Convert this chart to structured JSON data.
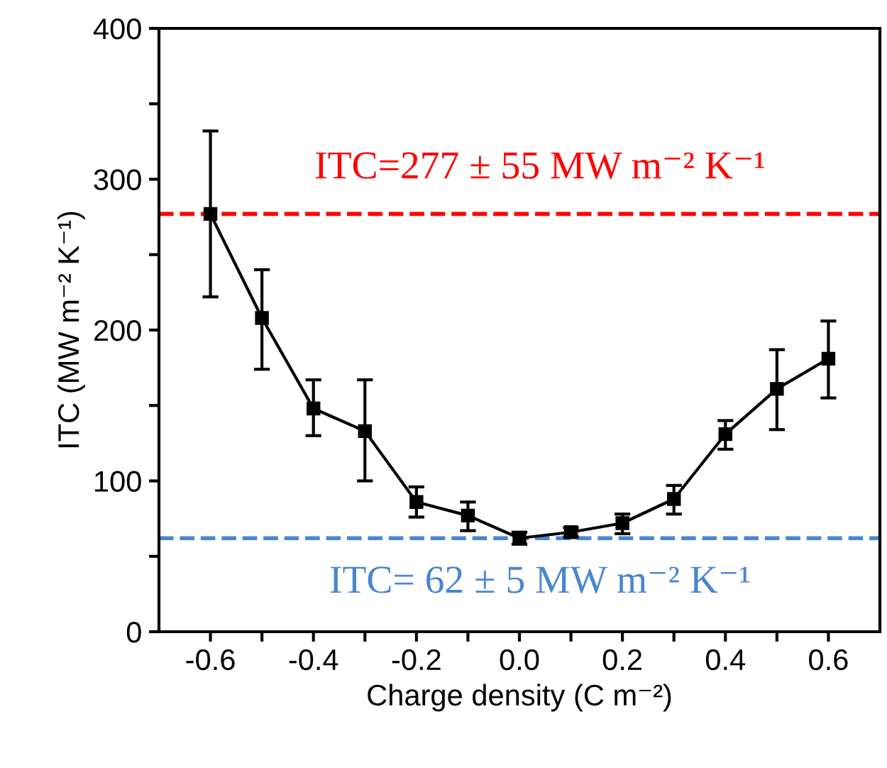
{
  "chart_data": {
    "type": "line",
    "xlabel": "Charge density (C m⁻²)",
    "ylabel": "ITC (MW m⁻² K⁻¹)",
    "x": [
      -0.6,
      -0.5,
      -0.4,
      -0.3,
      -0.2,
      -0.1,
      0.0,
      0.1,
      0.2,
      0.3,
      0.4,
      0.5,
      0.6
    ],
    "series": [
      {
        "color": "#000000",
        "values": [
          277,
          208,
          148,
          133,
          86,
          77,
          62,
          66,
          72,
          88,
          131,
          161,
          181
        ],
        "errors": [
          [
            222,
            332
          ],
          [
            174,
            240
          ],
          [
            130,
            167
          ],
          [
            100,
            167
          ],
          [
            76,
            96
          ],
          [
            67,
            86
          ],
          [
            58,
            66
          ],
          [
            63,
            69
          ],
          [
            65,
            78
          ],
          [
            78,
            97
          ],
          [
            121,
            140
          ],
          [
            134,
            187
          ],
          [
            155,
            206
          ]
        ]
      }
    ],
    "marker": "square",
    "line_style": "solid",
    "xlim": [
      -0.7,
      0.7
    ],
    "ylim": [
      0,
      400
    ],
    "xticks": [
      -0.6,
      {
        "value": -0.5,
        "label": null
      },
      -0.4,
      {
        "value": -0.3,
        "label": null
      },
      -0.2,
      {
        "value": -0.1,
        "label": null
      },
      {
        "value": 0.0,
        "label": "0.0"
      },
      {
        "value": 0.1,
        "label": null
      },
      0.2,
      {
        "value": 0.3,
        "label": null
      },
      0.4,
      {
        "value": 0.5,
        "label": null
      },
      0.6
    ],
    "yticks": [
      0,
      {
        "value": 50,
        "label": null
      },
      100,
      {
        "value": 150,
        "label": null
      },
      200,
      {
        "value": 250,
        "label": null
      },
      300,
      {
        "value": 350,
        "label": null
      },
      400
    ],
    "ref_lines": [
      {
        "axis": "y",
        "value": 277,
        "label": "ITC=277 ± 55 MW m⁻² K⁻¹",
        "color": "#ff0000",
        "line_style": "dashed"
      },
      {
        "axis": "y",
        "value": 62,
        "label": "ITC= 62 ± 5 MW m⁻² K⁻¹",
        "color": "#4a86d0",
        "line_style": "dashed"
      }
    ],
    "grid": false,
    "legend": false
  }
}
